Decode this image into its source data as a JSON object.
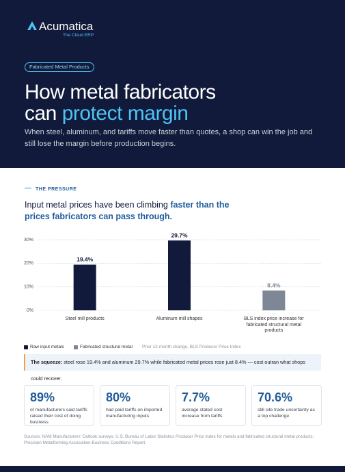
{
  "header": {
    "brand": "Acumatica",
    "brand_tagline": "The Cloud ERP",
    "tag": "Fabricated Metal Products",
    "title_line1": "How metal fabricators",
    "title_line2_start": "can",
    "title_highlight": "protect margin",
    "subtitle": "When steel, aluminum, and tariffs move faster than quotes, a shop can win the job and still lose the margin before production begins."
  },
  "section_label": "THE PRESSURE",
  "headline": {
    "start": "Input metal prices have been climbing",
    "highlight": "faster than the prices fabricators can pass through."
  },
  "chart_data": {
    "type": "bar",
    "categories": [
      "Steel mill products",
      "Aluminum mill shapes",
      "BLS index price increase for fabricated structural metal products"
    ],
    "series": [
      {
        "name": "Raw input metals",
        "color": "#111a3a",
        "values": [
          19.4,
          29.7,
          null
        ],
        "value_labels": [
          "19.4%",
          "29.7%",
          null
        ]
      },
      {
        "name": "Fabricated structural metal",
        "color": "#7d8796",
        "values": [
          null,
          null,
          8.4
        ],
        "value_labels": [
          null,
          null,
          "8.4%"
        ]
      }
    ],
    "ylim": [
      0,
      30
    ],
    "yticks": [
      {
        "value": 0,
        "label": "0%"
      },
      {
        "value": 10,
        "label": "10%"
      },
      {
        "value": 20,
        "label": "20%"
      },
      {
        "value": 30,
        "label": "30%"
      }
    ],
    "grid": true,
    "note": "Prior 12-month change, BLS Producer Price Index"
  },
  "callout": {
    "lead": "The squeeze:",
    "text": "steel rose 19.4% and aluminum 29.7% while fabricated metal prices rose just 8.4% — cost outran what shops could recover."
  },
  "stats": [
    {
      "value": "89%",
      "text": "of manufacturers said tariffs raised their cost of doing business"
    },
    {
      "value": "80%",
      "text": "had paid tariffs on imported manufacturing inputs"
    },
    {
      "value": "7.7%",
      "text": "average stated cost increase from tariffs"
    },
    {
      "value": "70.6%",
      "text": "still cite trade uncertainty as a top challenge"
    }
  ],
  "sources": "Sources: NAM Manufacturers' Outlook surveys; U.S. Bureau of Labor Statistics Producer Price Index for metals and fabricated structural metal products; Precision Metalforming Association Business Conditions Report."
}
